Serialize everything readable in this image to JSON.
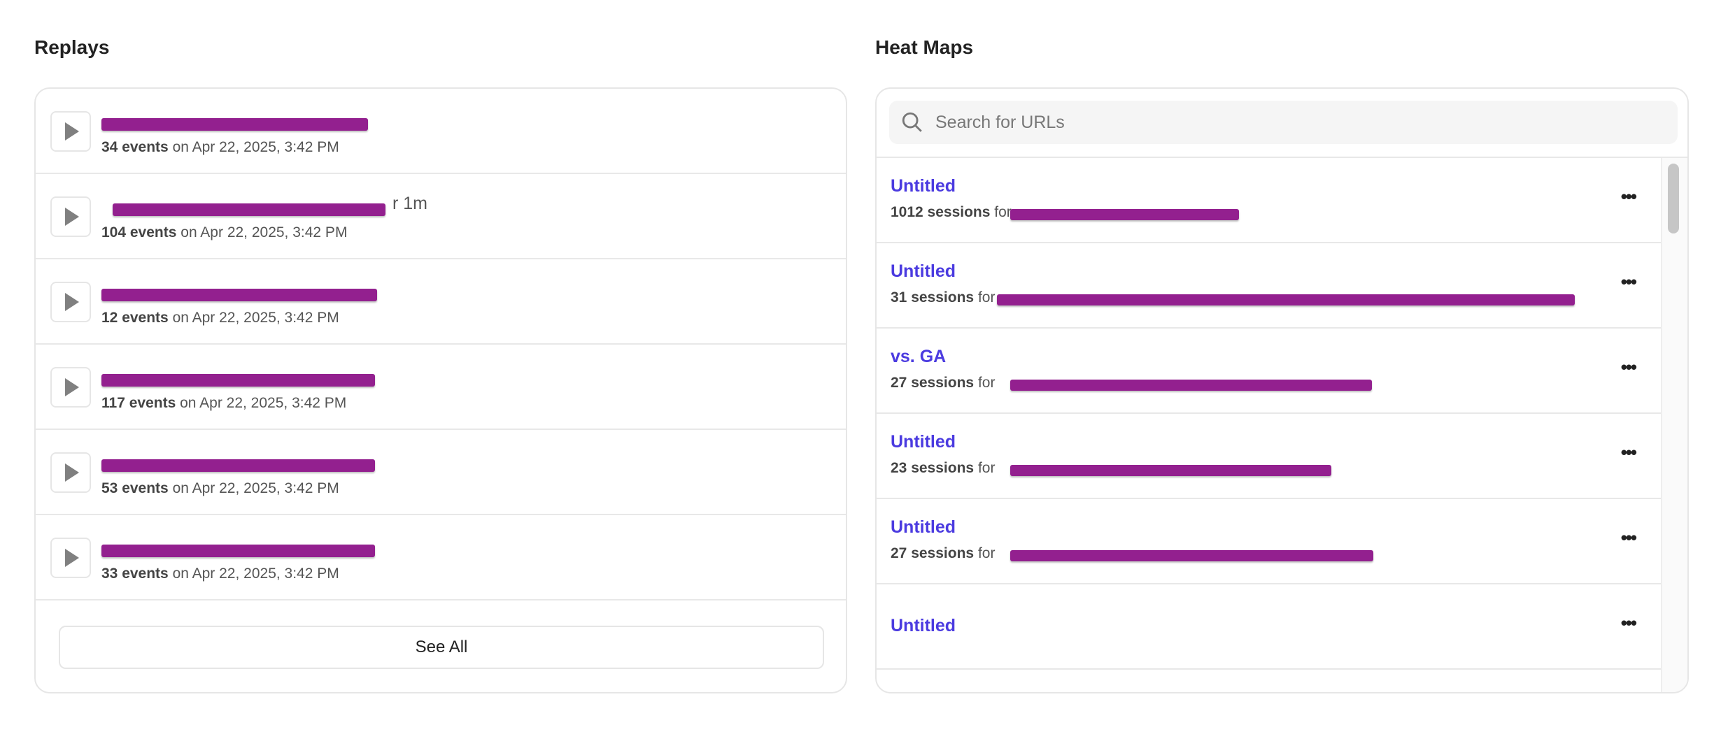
{
  "replays": {
    "title": "Replays",
    "items": [
      {
        "events": "34 events",
        "date": "on Apr 22, 2025, 3:42 PM",
        "visible_suffix": ""
      },
      {
        "events": "104 events",
        "date": "on Apr 22, 2025, 3:42 PM",
        "visible_suffix": "r 1m"
      },
      {
        "events": "12 events",
        "date": "on Apr 22, 2025, 3:42 PM",
        "visible_suffix": ""
      },
      {
        "events": "117 events",
        "date": "on Apr 22, 2025, 3:42 PM",
        "visible_suffix": ""
      },
      {
        "events": "53 events",
        "date": "on Apr 22, 2025, 3:42 PM",
        "visible_suffix": ""
      },
      {
        "events": "33 events",
        "date": "on Apr 22, 2025, 3:42 PM",
        "visible_suffix": ""
      }
    ],
    "see_all": "See All"
  },
  "heatmaps": {
    "title": "Heat Maps",
    "search_placeholder": "Search for URLs",
    "items": [
      {
        "title": "Untitled",
        "sessions": "1012 sessions",
        "for": "for"
      },
      {
        "title": "Untitled",
        "sessions": "31 sessions",
        "for": "for"
      },
      {
        "title": "vs. GA",
        "sessions": "27 sessions",
        "for": "for"
      },
      {
        "title": "Untitled",
        "sessions": "23 sessions",
        "for": "for"
      },
      {
        "title": "Untitled",
        "sessions": "27 sessions",
        "for": "for"
      },
      {
        "title": "Untitled",
        "sessions": "",
        "for": ""
      }
    ],
    "more_icon": "ellipsis-icon"
  },
  "colors": {
    "link": "#4b3be0",
    "redaction": "#93208f"
  }
}
